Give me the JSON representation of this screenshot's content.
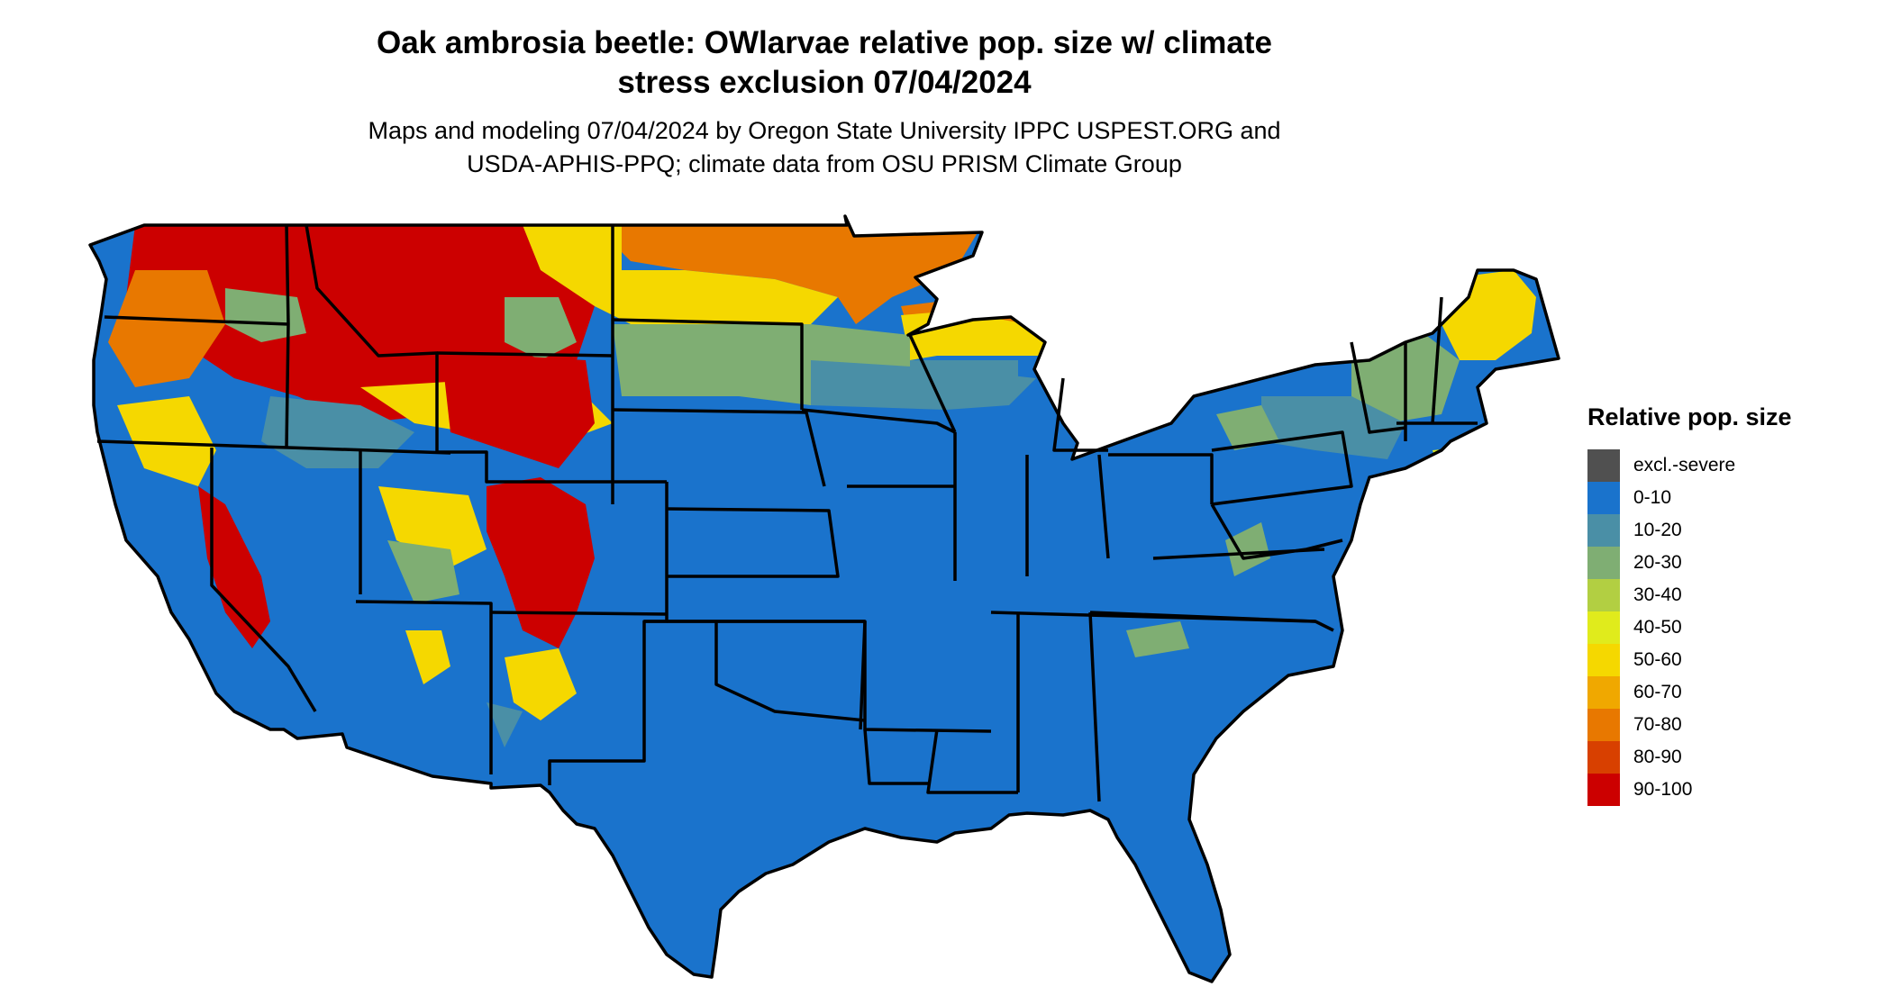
{
  "title_line1": "Oak ambrosia beetle: OWlarvae relative pop. size w/ climate",
  "title_line2": "stress exclusion 07/04/2024",
  "subtitle_line1": "Maps and modeling 07/04/2024 by Oregon State University IPPC USPEST.ORG and",
  "subtitle_line2": "USDA-APHIS-PPQ; climate data from OSU PRISM Climate Group",
  "legend": {
    "title": "Relative pop. size",
    "items": [
      {
        "label": "excl.-severe",
        "color": "#505050"
      },
      {
        "label": "0-10",
        "color": "#1a73cc"
      },
      {
        "label": "10-20",
        "color": "#4a8fa6"
      },
      {
        "label": "20-30",
        "color": "#7fae73"
      },
      {
        "label": "30-40",
        "color": "#b2cf42"
      },
      {
        "label": "40-50",
        "color": "#e0eb1c"
      },
      {
        "label": "50-60",
        "color": "#f5d800"
      },
      {
        "label": "60-70",
        "color": "#f0a800"
      },
      {
        "label": "70-80",
        "color": "#e87800"
      },
      {
        "label": "80-90",
        "color": "#d84000"
      },
      {
        "label": "90-100",
        "color": "#cc0000"
      }
    ]
  }
}
